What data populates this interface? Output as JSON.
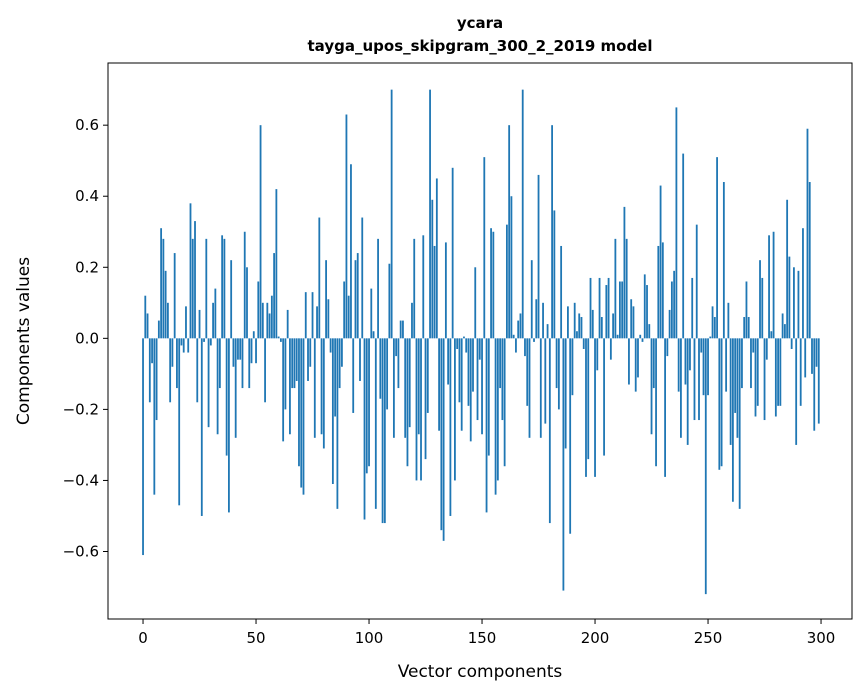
{
  "chart_data": {
    "type": "bar",
    "title": "ycara",
    "subtitle": "tayga_upos_skipgram_300_2_2019 model",
    "xlabel": "Vector components",
    "ylabel": "Components values",
    "xlim": [
      -15.5,
      313.7
    ],
    "ylim": [
      -0.79,
      0.775
    ],
    "xticks": [
      0,
      50,
      100,
      150,
      200,
      250,
      300
    ],
    "xtick_labels": [
      "0",
      "50",
      "100",
      "150",
      "200",
      "250",
      "300"
    ],
    "yticks": [
      -0.6,
      -0.4,
      -0.2,
      0.0,
      0.2,
      0.4,
      0.6
    ],
    "ytick_labels": [
      "−0.6",
      "−0.4",
      "−0.2",
      "0.0",
      "0.2",
      "0.4",
      "0.6"
    ],
    "grid": false,
    "bar_color": "#1f77b4",
    "values": [
      -0.61,
      0.12,
      0.07,
      -0.18,
      -0.07,
      -0.44,
      -0.23,
      0.05,
      0.31,
      0.28,
      0.19,
      0.1,
      -0.18,
      -0.08,
      0.24,
      -0.14,
      -0.47,
      -0.02,
      -0.04,
      0.09,
      -0.04,
      0.38,
      0.28,
      0.33,
      -0.18,
      0.08,
      -0.5,
      -0.01,
      0.28,
      -0.25,
      -0.02,
      0.1,
      0.14,
      -0.27,
      -0.14,
      0.29,
      0.28,
      -0.33,
      -0.49,
      0.22,
      -0.08,
      -0.28,
      -0.06,
      -0.06,
      -0.14,
      0.3,
      0.2,
      -0.14,
      -0.07,
      0.02,
      -0.07,
      0.16,
      0.6,
      0.1,
      -0.18,
      0.1,
      0.07,
      0.12,
      0.24,
      0.42,
      0.005,
      -0.01,
      -0.29,
      -0.2,
      0.08,
      -0.27,
      -0.14,
      -0.14,
      -0.12,
      -0.36,
      -0.42,
      -0.44,
      0.13,
      -0.12,
      -0.08,
      0.13,
      -0.28,
      0.09,
      0.34,
      -0.27,
      -0.31,
      0.22,
      0.11,
      -0.04,
      -0.41,
      -0.22,
      -0.48,
      -0.14,
      -0.08,
      0.16,
      0.63,
      0.12,
      0.49,
      -0.21,
      0.22,
      0.24,
      -0.12,
      0.34,
      -0.51,
      -0.38,
      -0.36,
      0.14,
      0.02,
      -0.48,
      0.28,
      -0.17,
      -0.52,
      -0.52,
      -0.2,
      0.21,
      0.7,
      -0.28,
      -0.05,
      -0.14,
      0.05,
      0.05,
      -0.28,
      -0.36,
      -0.25,
      0.1,
      0.28,
      -0.4,
      -0.27,
      -0.4,
      0.29,
      -0.34,
      -0.21,
      0.7,
      0.39,
      0.26,
      0.45,
      -0.26,
      -0.54,
      -0.57,
      0.27,
      -0.13,
      -0.5,
      0.48,
      -0.4,
      -0.03,
      -0.18,
      -0.26,
      0.005,
      -0.04,
      -0.19,
      -0.29,
      -0.15,
      0.2,
      -0.23,
      -0.06,
      -0.27,
      0.51,
      -0.49,
      -0.33,
      0.31,
      0.3,
      -0.44,
      -0.4,
      -0.14,
      -0.23,
      -0.36,
      0.32,
      0.6,
      0.4,
      0.01,
      -0.04,
      0.05,
      0.07,
      0.7,
      -0.05,
      -0.19,
      -0.28,
      0.22,
      -0.01,
      0.11,
      0.46,
      -0.28,
      0.1,
      -0.24,
      0.04,
      -0.52,
      0.6,
      0.36,
      -0.14,
      -0.2,
      0.26,
      -0.71,
      -0.31,
      0.09,
      -0.55,
      -0.16,
      0.1,
      0.02,
      0.07,
      0.06,
      -0.03,
      -0.39,
      -0.34,
      0.17,
      0.08,
      -0.39,
      -0.09,
      0.17,
      0.06,
      -0.33,
      0.15,
      0.17,
      -0.06,
      0.07,
      0.28,
      0.01,
      0.16,
      0.16,
      0.37,
      0.28,
      -0.13,
      0.11,
      0.09,
      -0.15,
      -0.11,
      0.01,
      -0.01,
      0.18,
      0.15,
      0.04,
      -0.27,
      -0.14,
      -0.36,
      0.26,
      0.43,
      0.27,
      -0.39,
      -0.05,
      0.08,
      0.16,
      0.19,
      0.65,
      -0.15,
      -0.28,
      0.52,
      -0.13,
      -0.3,
      -0.09,
      0.17,
      -0.23,
      0.32,
      -0.23,
      -0.04,
      -0.16,
      -0.72,
      -0.16,
      0.005,
      0.09,
      0.06,
      0.51,
      -0.37,
      -0.36,
      0.44,
      -0.15,
      0.1,
      -0.3,
      -0.46,
      -0.21,
      -0.28,
      -0.48,
      -0.14,
      0.06,
      0.16,
      0.06,
      -0.14,
      -0.04,
      -0.22,
      -0.19,
      0.22,
      0.17,
      -0.23,
      -0.06,
      0.29,
      0.02,
      0.3,
      -0.22,
      -0.19,
      -0.19,
      0.07,
      0.04,
      0.39,
      0.23,
      -0.03,
      0.2,
      -0.3,
      0.19,
      -0.19,
      0.31,
      -0.11,
      0.59,
      0.44,
      -0.1,
      -0.26,
      -0.08,
      -0.24
    ]
  }
}
